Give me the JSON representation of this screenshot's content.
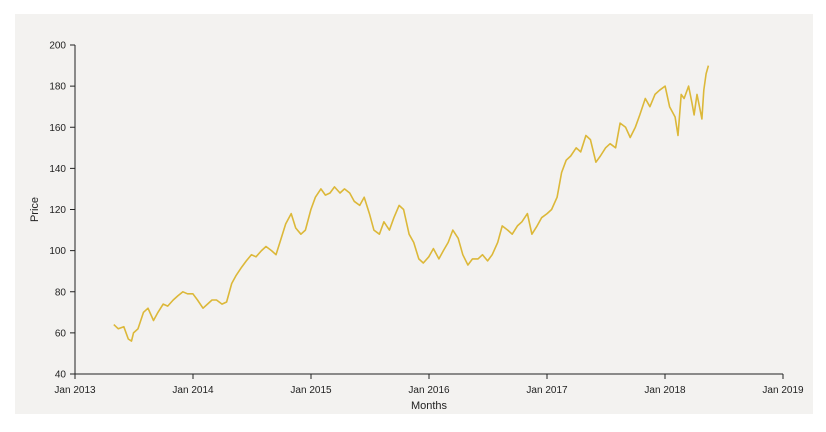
{
  "chart_data": {
    "type": "line",
    "title": "",
    "xlabel": "Months",
    "ylabel": "Price",
    "xlim": [
      "2013-01-01",
      "2019-01-01"
    ],
    "ylim": [
      40,
      200
    ],
    "x_ticks": [
      "Jan 2013",
      "Jan 2014",
      "Jan 2015",
      "Jan 2016",
      "Jan 2017",
      "Jan 2018",
      "Jan 2019"
    ],
    "y_ticks": [
      40,
      60,
      80,
      100,
      120,
      140,
      160,
      180,
      200
    ],
    "grid": false,
    "colors": {
      "line": "#dcb839",
      "axis": "#222222",
      "background": "#f3f2f0"
    },
    "series": [
      {
        "x": [
          "2013-05-01",
          "2013-05-15",
          "2013-06-01",
          "2013-06-15",
          "2013-06-25",
          "2013-07-01",
          "2013-07-15",
          "2013-08-01",
          "2013-08-15",
          "2013-09-01",
          "2013-09-15",
          "2013-10-01",
          "2013-10-15",
          "2013-11-01",
          "2013-11-15",
          "2013-12-01",
          "2013-12-15",
          "2014-01-01",
          "2014-01-15",
          "2014-02-01",
          "2014-02-15",
          "2014-03-01",
          "2014-03-15",
          "2014-04-01",
          "2014-04-15",
          "2014-05-01",
          "2014-05-15",
          "2014-06-01",
          "2014-06-15",
          "2014-07-01",
          "2014-07-15",
          "2014-08-01",
          "2014-08-15",
          "2014-09-01",
          "2014-09-15",
          "2014-10-01",
          "2014-10-15",
          "2014-11-01",
          "2014-11-15",
          "2014-12-01",
          "2014-12-15",
          "2015-01-01",
          "2015-01-15",
          "2015-02-01",
          "2015-02-15",
          "2015-03-01",
          "2015-03-15",
          "2015-04-01",
          "2015-04-15",
          "2015-05-01",
          "2015-05-15",
          "2015-06-01",
          "2015-06-15",
          "2015-07-01",
          "2015-07-15",
          "2015-08-01",
          "2015-08-15",
          "2015-09-01",
          "2015-09-15",
          "2015-10-01",
          "2015-10-15",
          "2015-11-01",
          "2015-11-15",
          "2015-12-01",
          "2015-12-15",
          "2016-01-01",
          "2016-01-15",
          "2016-02-01",
          "2016-02-15",
          "2016-03-01",
          "2016-03-15",
          "2016-04-01",
          "2016-04-15",
          "2016-05-01",
          "2016-05-15",
          "2016-06-01",
          "2016-06-15",
          "2016-07-01",
          "2016-07-15",
          "2016-08-01",
          "2016-08-15",
          "2016-09-01",
          "2016-09-15",
          "2016-10-01",
          "2016-10-15",
          "2016-11-01",
          "2016-11-15",
          "2016-12-01",
          "2016-12-15",
          "2017-01-01",
          "2017-01-15",
          "2017-02-01",
          "2017-02-15",
          "2017-03-01",
          "2017-03-15",
          "2017-04-01",
          "2017-04-15",
          "2017-05-01",
          "2017-05-15",
          "2017-06-01",
          "2017-06-15",
          "2017-07-01",
          "2017-07-15",
          "2017-08-01",
          "2017-08-15",
          "2017-09-01",
          "2017-09-15",
          "2017-10-01",
          "2017-10-15",
          "2017-11-01",
          "2017-11-15",
          "2017-12-01",
          "2017-12-15",
          "2018-01-01",
          "2018-01-15",
          "2018-02-01",
          "2018-02-10",
          "2018-02-20",
          "2018-03-01",
          "2018-03-15",
          "2018-03-25",
          "2018-04-01",
          "2018-04-10",
          "2018-04-20",
          "2018-04-25",
          "2018-05-01",
          "2018-05-08",
          "2018-05-15"
        ],
        "y": [
          64,
          62,
          63,
          57,
          56,
          60,
          62,
          70,
          72,
          66,
          70,
          74,
          73,
          76,
          78,
          80,
          79,
          79,
          76,
          72,
          74,
          76,
          76,
          74,
          75,
          84,
          88,
          92,
          95,
          98,
          97,
          100,
          102,
          100,
          98,
          106,
          113,
          118,
          111,
          108,
          110,
          120,
          126,
          130,
          127,
          128,
          131,
          128,
          130,
          128,
          124,
          122,
          126,
          118,
          110,
          108,
          114,
          110,
          116,
          122,
          120,
          108,
          104,
          96,
          94,
          97,
          101,
          96,
          100,
          104,
          110,
          106,
          98,
          93,
          96,
          96,
          98,
          95,
          98,
          104,
          112,
          110,
          108,
          112,
          114,
          118,
          108,
          112,
          116,
          118,
          120,
          126,
          138,
          144,
          146,
          150,
          148,
          156,
          154,
          143,
          146,
          150,
          152,
          150,
          162,
          160,
          155,
          160,
          166,
          174,
          170,
          176,
          178,
          180,
          170,
          165,
          156,
          176,
          174,
          180,
          172,
          166,
          176,
          168,
          164,
          178,
          186,
          190
        ]
      }
    ]
  }
}
